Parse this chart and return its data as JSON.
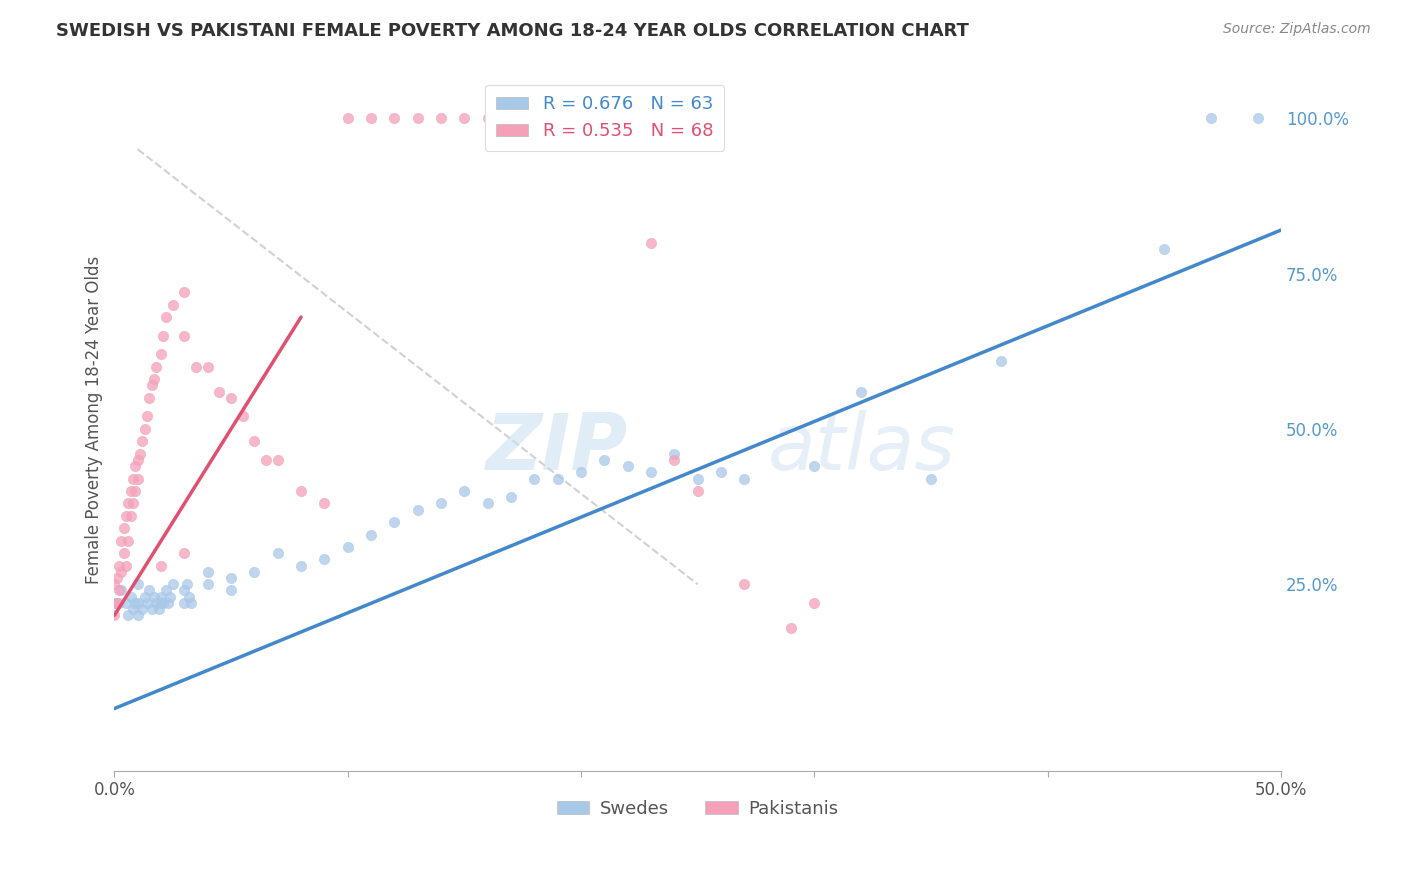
{
  "title": "SWEDISH VS PAKISTANI FEMALE POVERTY AMONG 18-24 YEAR OLDS CORRELATION CHART",
  "source": "Source: ZipAtlas.com",
  "ylabel": "Female Poverty Among 18-24 Year Olds",
  "xlim": [
    0.0,
    0.5
  ],
  "ylim": [
    -0.05,
    1.08
  ],
  "blue_color": "#A8C8E8",
  "pink_color": "#F4A0B8",
  "blue_line_color": "#4488CC",
  "pink_line_color": "#E05070",
  "ref_line_color": "#CCCCCC",
  "watermark_zip": "ZIP",
  "watermark_atlas": "atlas",
  "legend_blue_label": "R = 0.676   N = 63",
  "legend_pink_label": "R = 0.535   N = 68",
  "legend_swedes": "Swedes",
  "legend_pakistanis": "Pakistanis",
  "blue_line_x0": 0.0,
  "blue_line_y0": 0.05,
  "blue_line_x1": 0.5,
  "blue_line_y1": 0.82,
  "pink_line_x0": 0.0,
  "pink_line_y0": 0.2,
  "pink_line_x1": 0.08,
  "pink_line_y1": 0.68,
  "ref_line_x0": 0.01,
  "ref_line_y0": 0.95,
  "ref_line_x1": 0.25,
  "ref_line_y1": 0.25,
  "blue_x": [
    0.002,
    0.003,
    0.005,
    0.006,
    0.007,
    0.008,
    0.009,
    0.01,
    0.01,
    0.01,
    0.012,
    0.013,
    0.014,
    0.015,
    0.016,
    0.017,
    0.018,
    0.019,
    0.02,
    0.02,
    0.021,
    0.022,
    0.023,
    0.024,
    0.025,
    0.03,
    0.03,
    0.031,
    0.032,
    0.033,
    0.04,
    0.04,
    0.05,
    0.05,
    0.06,
    0.07,
    0.08,
    0.09,
    0.1,
    0.11,
    0.12,
    0.13,
    0.14,
    0.15,
    0.16,
    0.17,
    0.18,
    0.19,
    0.2,
    0.21,
    0.22,
    0.23,
    0.24,
    0.25,
    0.26,
    0.27,
    0.3,
    0.32,
    0.35,
    0.38,
    0.45,
    0.47,
    0.49
  ],
  "blue_y": [
    0.22,
    0.24,
    0.22,
    0.2,
    0.23,
    0.21,
    0.22,
    0.2,
    0.22,
    0.25,
    0.21,
    0.23,
    0.22,
    0.24,
    0.21,
    0.23,
    0.22,
    0.21,
    0.23,
    0.22,
    0.22,
    0.24,
    0.22,
    0.23,
    0.25,
    0.22,
    0.24,
    0.25,
    0.23,
    0.22,
    0.25,
    0.27,
    0.24,
    0.26,
    0.27,
    0.3,
    0.28,
    0.29,
    0.31,
    0.33,
    0.35,
    0.37,
    0.38,
    0.4,
    0.38,
    0.39,
    0.42,
    0.42,
    0.43,
    0.45,
    0.44,
    0.43,
    0.46,
    0.42,
    0.43,
    0.42,
    0.44,
    0.56,
    0.42,
    0.61,
    0.79,
    1.0,
    1.0
  ],
  "pink_x": [
    0.0,
    0.0,
    0.0,
    0.001,
    0.001,
    0.002,
    0.002,
    0.003,
    0.003,
    0.004,
    0.004,
    0.005,
    0.005,
    0.006,
    0.006,
    0.007,
    0.007,
    0.008,
    0.008,
    0.009,
    0.009,
    0.01,
    0.01,
    0.011,
    0.012,
    0.013,
    0.014,
    0.015,
    0.016,
    0.017,
    0.018,
    0.02,
    0.021,
    0.022,
    0.025,
    0.03,
    0.03,
    0.035,
    0.04,
    0.045,
    0.05,
    0.055,
    0.06,
    0.065,
    0.07,
    0.08,
    0.09,
    0.1,
    0.11,
    0.12,
    0.13,
    0.14,
    0.15,
    0.16,
    0.17,
    0.18,
    0.19,
    0.2,
    0.21,
    0.22,
    0.23,
    0.24,
    0.25,
    0.27,
    0.29,
    0.3,
    0.02,
    0.03
  ],
  "pink_y": [
    0.22,
    0.25,
    0.2,
    0.26,
    0.22,
    0.28,
    0.24,
    0.32,
    0.27,
    0.34,
    0.3,
    0.36,
    0.28,
    0.38,
    0.32,
    0.4,
    0.36,
    0.42,
    0.38,
    0.44,
    0.4,
    0.45,
    0.42,
    0.46,
    0.48,
    0.5,
    0.52,
    0.55,
    0.57,
    0.58,
    0.6,
    0.62,
    0.65,
    0.68,
    0.7,
    0.65,
    0.72,
    0.6,
    0.6,
    0.56,
    0.55,
    0.52,
    0.48,
    0.45,
    0.45,
    0.4,
    0.38,
    1.0,
    1.0,
    1.0,
    1.0,
    1.0,
    1.0,
    1.0,
    1.0,
    1.0,
    1.0,
    1.0,
    1.0,
    1.0,
    0.8,
    0.45,
    0.4,
    0.25,
    0.18,
    0.22,
    0.28,
    0.3
  ]
}
